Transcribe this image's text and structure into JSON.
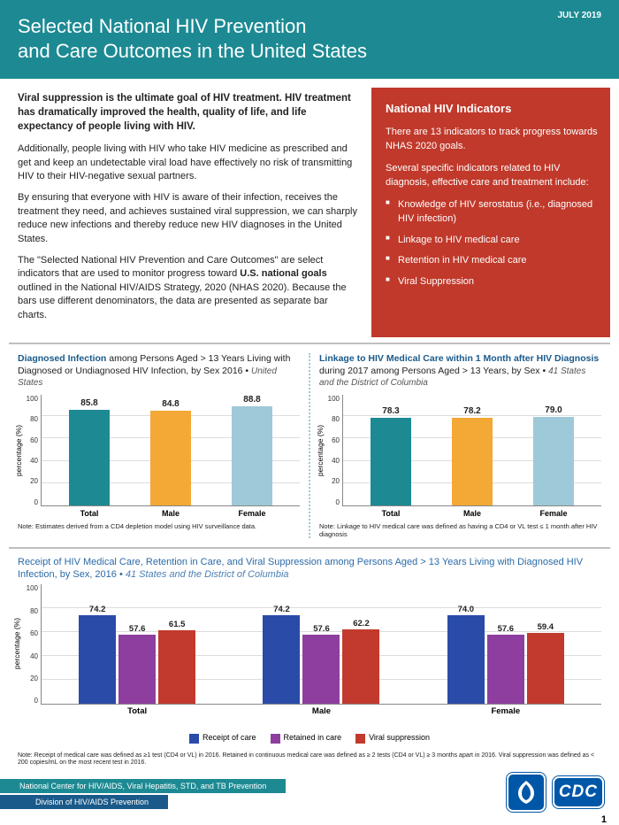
{
  "date": "JULY 2019",
  "title_l1": "Selected National HIV Prevention",
  "title_l2": "and Care Outcomes in the United States",
  "intro": {
    "lead": "Viral suppression is the ultimate goal of HIV treatment. HIV treatment has dramatically improved the health, quality of life, and life expectancy of people living with HIV.",
    "p1": "Additionally, people living with HIV who take HIV medicine as prescribed and get and keep an undetectable viral load have effectively no risk of transmitting HIV to their HIV-negative sexual partners.",
    "p2": "By ensuring that everyone with HIV is aware of their infection, receives the treatment they need, and achieves sustained viral suppression, we can sharply reduce new infections and thereby reduce new HIV diagnoses in the United States.",
    "p3a": "The \"Selected National HIV Prevention and Care Outcomes\" are select indicators that are used to monitor progress toward ",
    "p3b": "U.S. national goals",
    "p3c": " outlined in the National HIV/AIDS Strategy, 2020 (NHAS 2020). Because the bars use different denominators, the data are presented as separate bar charts."
  },
  "indicators": {
    "title": "National HIV Indicators",
    "p1": "There are 13 indicators to track progress towards NHAS 2020 goals.",
    "p2": "Several specific indicators related to HIV diagnosis, effective care and treatment include:",
    "items": [
      "Knowledge of HIV serostatus (i.e., diagnosed HIV infection)",
      "Linkage to HIV medical care",
      "Retention in HIV medical care",
      "Viral Suppression"
    ]
  },
  "chart1": {
    "title_bold": "Diagnosed Infection",
    "title_rest": " among Persons Aged > 13 Years Living with Diagnosed or Undiagnosed HIV Infection, by Sex 2016 • ",
    "title_sub": "United States",
    "ylabel": "percentage (%)",
    "ymax": 100,
    "yticks": [
      "100",
      "80",
      "60",
      "40",
      "20",
      "0"
    ],
    "categories": [
      "Total",
      "Male",
      "Female"
    ],
    "values": [
      85.8,
      84.8,
      88.8
    ],
    "colors": [
      "#1d8a93",
      "#f4a836",
      "#9ec9d8"
    ],
    "note": "Note: Estimates derived from a CD4 depletion model using HIV surveillance data."
  },
  "chart2": {
    "title_bold": "Linkage to HIV Medical Care within 1 Month after HIV Diagnosis",
    "title_rest": " during 2017 among Persons Aged > 13 Years, by Sex • ",
    "title_sub": "41 States and the District of Columbia",
    "ylabel": "percentage (%)",
    "ymax": 100,
    "yticks": [
      "100",
      "80",
      "60",
      "40",
      "20",
      "0"
    ],
    "categories": [
      "Total",
      "Male",
      "Female"
    ],
    "values": [
      78.3,
      78.2,
      79.0
    ],
    "colors": [
      "#1d8a93",
      "#f4a836",
      "#9ec9d8"
    ],
    "note": "Note: Linkage to HIV medical care was defined as having a CD4 or VL test ≤ 1 month after HIV diagnosis"
  },
  "chart3": {
    "title": "Receipt of HIV Medical Care, Retention in Care, and Viral Suppression among Persons Aged > 13 Years Living with Diagnosed HIV Infection, by Sex, 2016 • ",
    "title_sub": "41 States and the District of Columbia",
    "ylabel": "percentage (%)",
    "ymax": 100,
    "yticks": [
      "100",
      "80",
      "60",
      "40",
      "20",
      "0"
    ],
    "groups": [
      "Total",
      "Male",
      "Female"
    ],
    "series": [
      {
        "label": "Receipt of care",
        "color": "#2a4ba8"
      },
      {
        "label": "Retained in care",
        "color": "#8e3e9e"
      },
      {
        "label": "Viral suppression",
        "color": "#c23a2e"
      }
    ],
    "data": {
      "Total": [
        74.2,
        57.6,
        61.5
      ],
      "Male": [
        74.2,
        57.6,
        62.2
      ],
      "Female": [
        74.0,
        57.6,
        59.4
      ]
    }
  },
  "bottom_note": "Note: Receipt of medical care was defined as ≥1 test (CD4 or VL) in 2016. Retained in continuous medical care was defined as ≥ 2 tests (CD4 or VL) ≥ 3 months apart in 2016. Viral suppression was defined as < 200 copies/mL on the most recent test in 2016.",
  "footer": {
    "top": "National Center for HIV/AIDS, Viral Hepatitis, STD, and TB Prevention",
    "bot": "Division of HIV/AIDS Prevention",
    "cdc": "CDC"
  },
  "page_num": "1"
}
